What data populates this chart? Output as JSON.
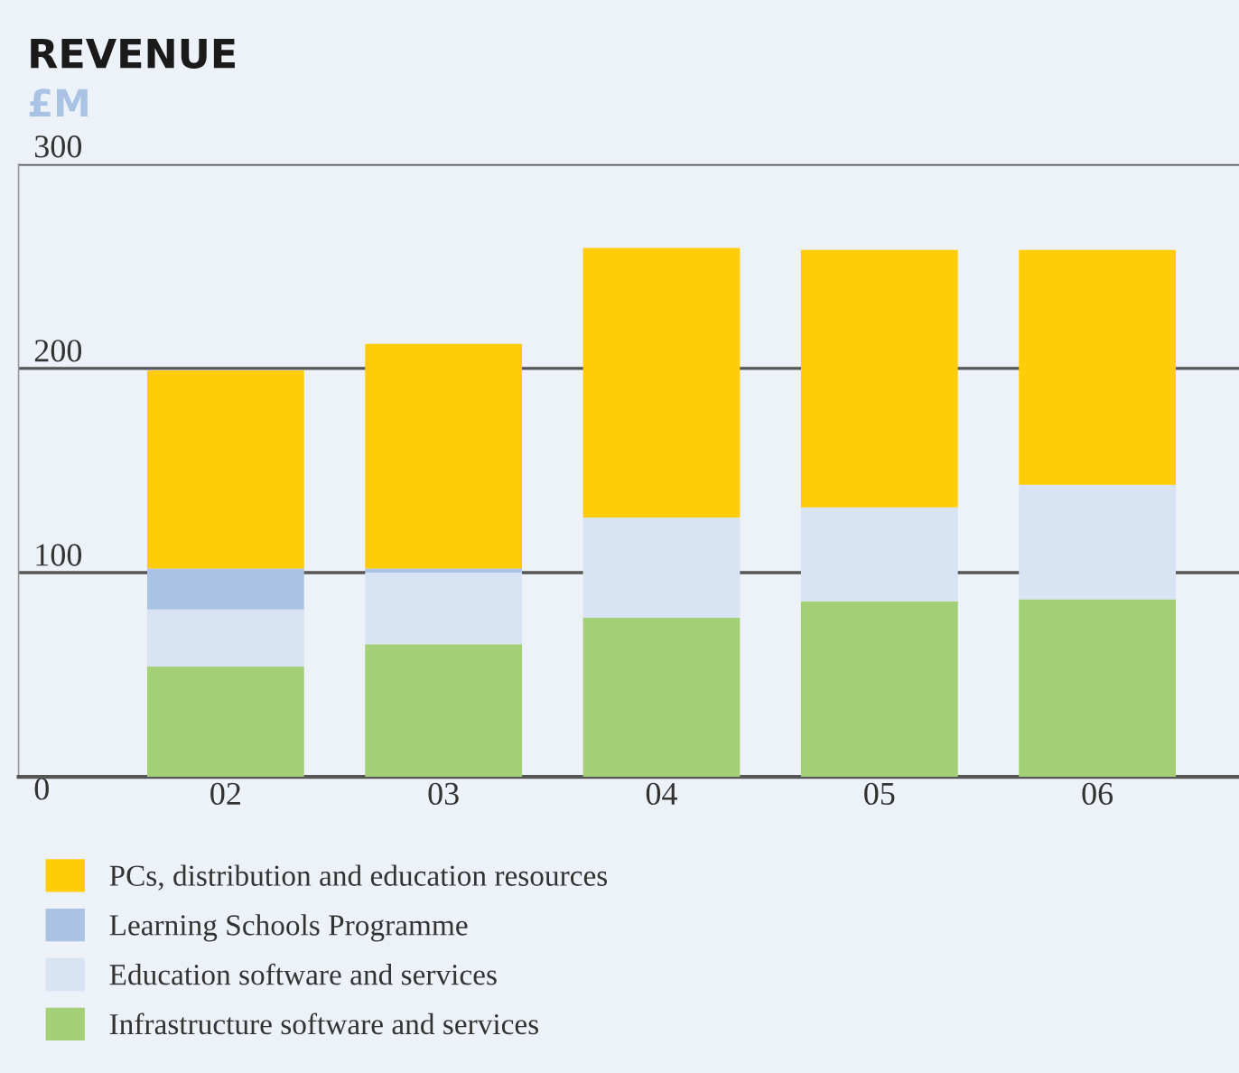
{
  "chart_data": {
    "type": "bar",
    "title": "REVENUE",
    "subtitle": "£M",
    "stacked": true,
    "categories": [
      "02",
      "03",
      "04",
      "05",
      "06"
    ],
    "series": [
      {
        "name": "Infrastructure software and services",
        "color": "#a3cf76",
        "values": [
          54,
          65,
          78,
          86,
          87
        ]
      },
      {
        "name": "Education software and services",
        "color": "#d8e3f3",
        "values": [
          28,
          35,
          49,
          46,
          56
        ]
      },
      {
        "name": "Learning Schools Programme",
        "color": "#aac3e4",
        "values": [
          20,
          2,
          null,
          null,
          null
        ]
      },
      {
        "name": "PCs, distribution and education resources",
        "color": "#fecc08",
        "values": [
          97,
          110,
          132,
          126,
          115
        ]
      }
    ],
    "ylim": [
      0,
      300
    ],
    "yticks": [
      0,
      100,
      200,
      300
    ],
    "grid": "y",
    "legend": "bottom"
  }
}
